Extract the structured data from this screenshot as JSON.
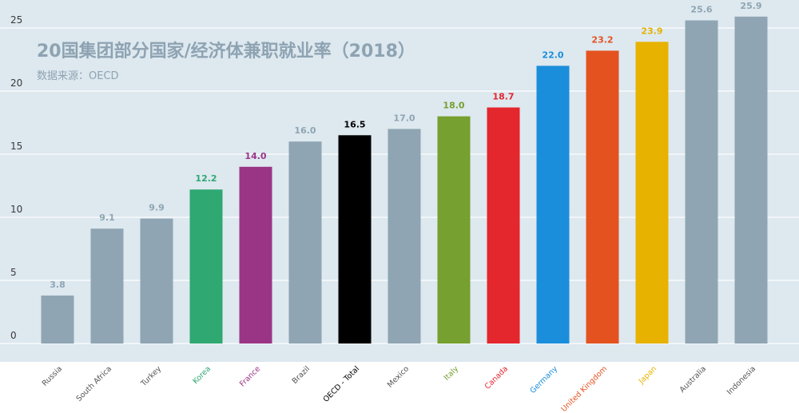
{
  "title": "20国集团部分国家/经济体兼职就业率（2018）",
  "subtitle": "数据来源：OECD",
  "colors": {
    "background": "#dde8ef",
    "gridline": "#ffffff",
    "axis_text": "#3a3a3a",
    "title_text": "#8ea3b2",
    "default_bar": "#8fa5b3"
  },
  "chart_data": {
    "type": "bar",
    "title": "20国集团部分国家/经济体兼职就业率（2018）",
    "subtitle": "数据来源：OECD",
    "categories": [
      "Russia",
      "South Africa",
      "Turkey",
      "Korea",
      "France",
      "Brazil",
      "OECD - Total",
      "Mexico",
      "Italy",
      "Canada",
      "Germany",
      "United Kingdom",
      "Japan",
      "Australia",
      "Indonesia"
    ],
    "values": [
      3.8,
      9.1,
      9.9,
      12.2,
      14.0,
      16.0,
      16.5,
      17.0,
      18.0,
      18.7,
      22.0,
      23.2,
      23.9,
      25.6,
      25.9
    ],
    "value_labels": [
      "3.8",
      "9.1",
      "9.9",
      "12.2",
      "14.0",
      "16.0",
      "16.5",
      "17.0",
      "18.0",
      "18.7",
      "22.0",
      "23.2",
      "23.9",
      "25.6",
      "25.9"
    ],
    "bar_colors": [
      "#8fa5b3",
      "#8fa5b3",
      "#8fa5b3",
      "#2fa872",
      "#9a3586",
      "#8fa5b3",
      "#000000",
      "#8fa5b3",
      "#76a02f",
      "#e4262d",
      "#1a8edb",
      "#e45220",
      "#e7b200",
      "#8fa5b3",
      "#8fa5b3"
    ],
    "label_colors": [
      "#8fa5b3",
      "#8fa5b3",
      "#8fa5b3",
      "#2fa872",
      "#9a3586",
      "#8fa5b3",
      "#000000",
      "#8fa5b3",
      "#76a02f",
      "#e4262d",
      "#1a8edb",
      "#e45220",
      "#e7b200",
      "#8fa5b3",
      "#8fa5b3"
    ],
    "category_label_colors": [
      "#555555",
      "#555555",
      "#555555",
      "#2fa872",
      "#9a3586",
      "#555555",
      "#000000",
      "#555555",
      "#76a02f",
      "#e4262d",
      "#1a8edb",
      "#e45220",
      "#e7b200",
      "#555555",
      "#555555"
    ],
    "yticks": [
      0,
      5,
      10,
      15,
      20,
      25
    ],
    "ylim": [
      0,
      27
    ],
    "xlabel": "",
    "ylabel": "",
    "grid": true
  }
}
